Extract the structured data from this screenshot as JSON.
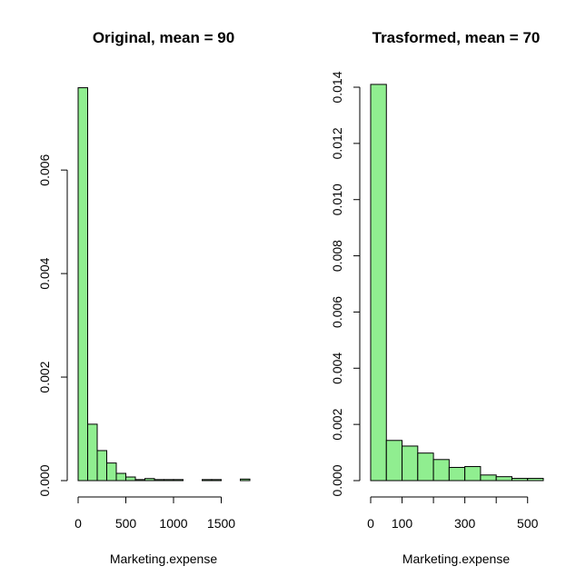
{
  "chart_data": [
    {
      "type": "histogram",
      "title": "Original, mean = 90",
      "xlabel": "Marketing.expense",
      "ylabel": "",
      "bin_width": 100,
      "xlim": [
        0,
        1800
      ],
      "ylim": [
        0,
        0.0076
      ],
      "x_ticks": [
        "0",
        "500",
        "1000",
        "1500"
      ],
      "y_ticks": [
        "0.000",
        "0.002",
        "0.004",
        "0.006"
      ],
      "bins": [
        {
          "x0": 0,
          "x1": 100,
          "density": 0.00759
        },
        {
          "x0": 100,
          "x1": 200,
          "density": 0.00109
        },
        {
          "x0": 200,
          "x1": 300,
          "density": 0.00058
        },
        {
          "x0": 300,
          "x1": 400,
          "density": 0.00034
        },
        {
          "x0": 400,
          "x1": 500,
          "density": 0.00014
        },
        {
          "x0": 500,
          "x1": 600,
          "density": 7e-05
        },
        {
          "x0": 600,
          "x1": 700,
          "density": 2e-05
        },
        {
          "x0": 700,
          "x1": 800,
          "density": 4e-05
        },
        {
          "x0": 800,
          "x1": 900,
          "density": 2e-05
        },
        {
          "x0": 900,
          "x1": 1000,
          "density": 2e-05
        },
        {
          "x0": 1000,
          "x1": 1100,
          "density": 2e-05
        },
        {
          "x0": 1100,
          "x1": 1200,
          "density": 0.0
        },
        {
          "x0": 1200,
          "x1": 1300,
          "density": 0.0
        },
        {
          "x0": 1300,
          "x1": 1400,
          "density": 2e-05
        },
        {
          "x0": 1400,
          "x1": 1500,
          "density": 2e-05
        },
        {
          "x0": 1500,
          "x1": 1600,
          "density": 0.0
        },
        {
          "x0": 1600,
          "x1": 1700,
          "density": 0.0
        },
        {
          "x0": 1700,
          "x1": 1800,
          "density": 3e-05
        }
      ],
      "bar_color": "#90EE90"
    },
    {
      "type": "histogram",
      "title": "Trasformed, mean = 70",
      "xlabel": "Marketing.expense",
      "ylabel": "",
      "bin_width": 50,
      "xlim": [
        0,
        550
      ],
      "ylim": [
        0,
        0.014
      ],
      "x_ticks": [
        "0",
        "100",
        "300",
        "500"
      ],
      "y_ticks": [
        "0.000",
        "0.002",
        "0.004",
        "0.006",
        "0.008",
        "0.010",
        "0.012",
        "0.014"
      ],
      "bins": [
        {
          "x0": 0,
          "x1": 50,
          "density": 0.0141
        },
        {
          "x0": 50,
          "x1": 100,
          "density": 0.00143
        },
        {
          "x0": 100,
          "x1": 150,
          "density": 0.00123
        },
        {
          "x0": 150,
          "x1": 200,
          "density": 0.00098
        },
        {
          "x0": 200,
          "x1": 250,
          "density": 0.00075
        },
        {
          "x0": 250,
          "x1": 300,
          "density": 0.00047
        },
        {
          "x0": 300,
          "x1": 350,
          "density": 0.0005
        },
        {
          "x0": 350,
          "x1": 400,
          "density": 0.0002
        },
        {
          "x0": 400,
          "x1": 450,
          "density": 0.00014
        },
        {
          "x0": 450,
          "x1": 500,
          "density": 8e-05
        },
        {
          "x0": 500,
          "x1": 550,
          "density": 8e-05
        }
      ],
      "bar_color": "#90EE90"
    }
  ]
}
